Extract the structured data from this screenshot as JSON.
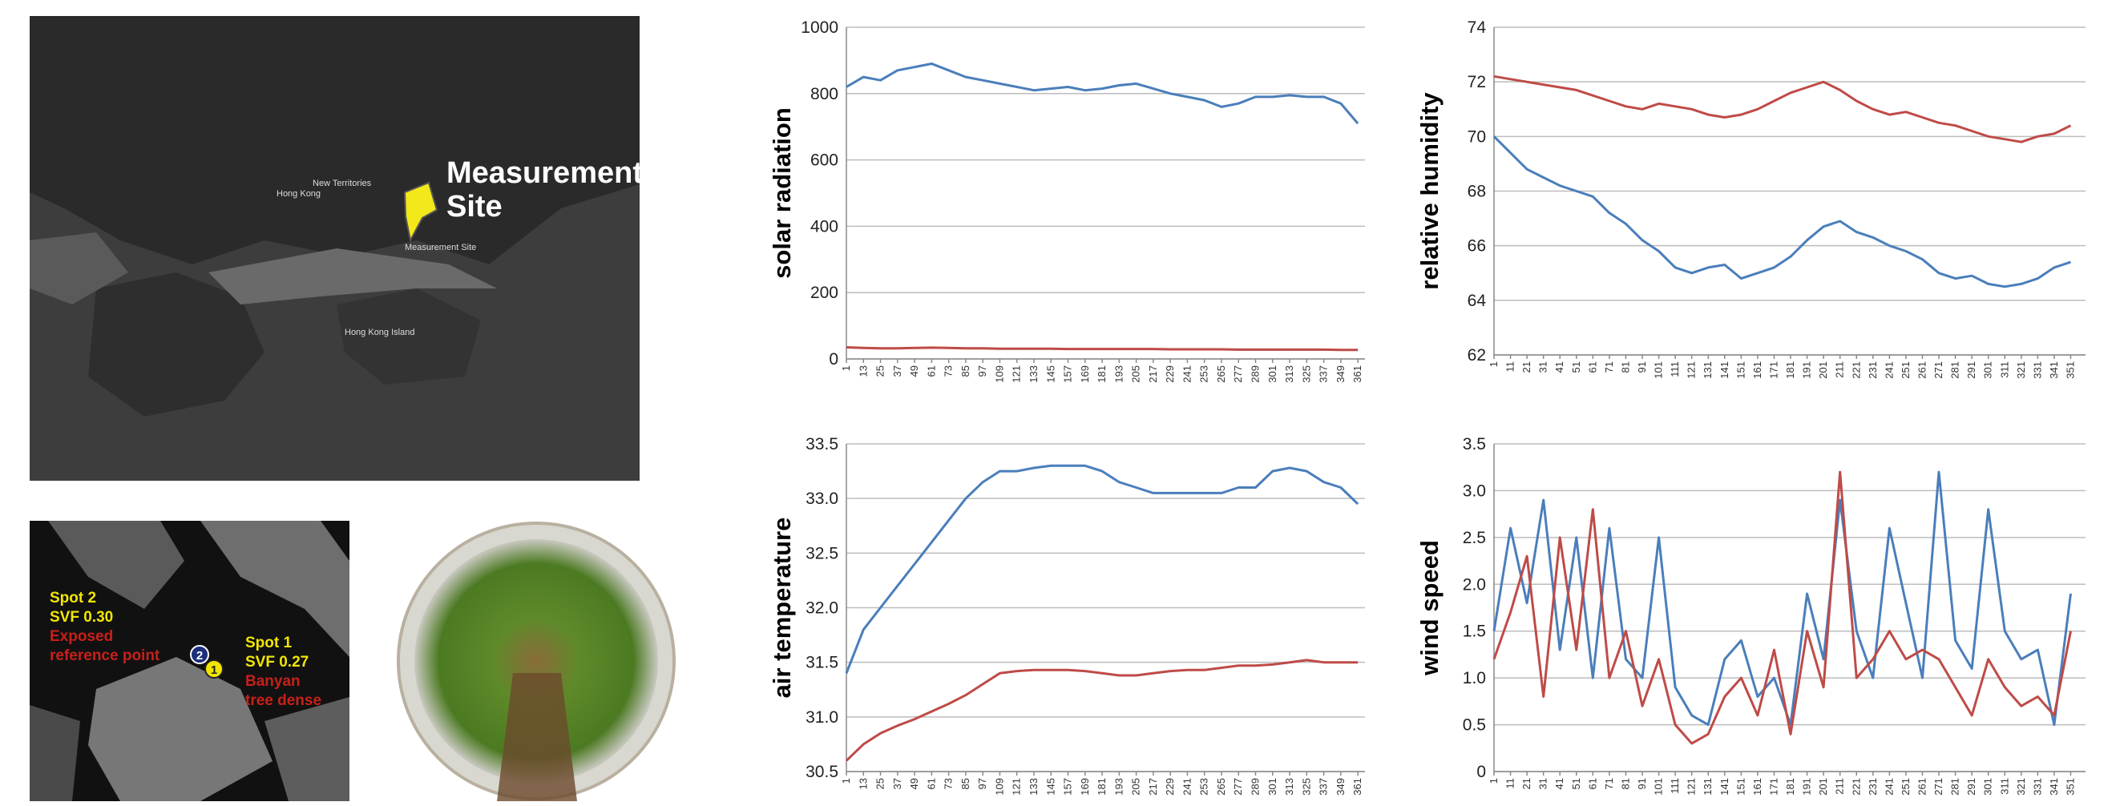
{
  "chart_data": [
    {
      "type": "line",
      "ylabel": "solar radiation",
      "ylim": [
        0,
        1000
      ],
      "yticks": [
        0,
        200,
        400,
        600,
        800,
        1000
      ],
      "grid": true,
      "xlim": [
        1,
        366
      ],
      "xticks": [
        1,
        13,
        25,
        37,
        49,
        61,
        73,
        85,
        97,
        109,
        121,
        133,
        145,
        157,
        169,
        181,
        193,
        205,
        217,
        229,
        241,
        253,
        265,
        277,
        289,
        301,
        313,
        325,
        337,
        349,
        361
      ],
      "x": [
        1,
        13,
        25,
        37,
        49,
        61,
        73,
        85,
        97,
        109,
        121,
        133,
        145,
        157,
        169,
        181,
        193,
        205,
        217,
        229,
        241,
        253,
        265,
        277,
        289,
        301,
        313,
        325,
        337,
        349,
        361
      ],
      "series": [
        {
          "color": "#4a7ebb",
          "values": [
            820,
            850,
            840,
            870,
            880,
            890,
            870,
            850,
            840,
            830,
            820,
            810,
            815,
            820,
            810,
            815,
            825,
            830,
            815,
            800,
            790,
            780,
            760,
            770,
            790,
            790,
            795,
            790,
            790,
            770,
            710
          ]
        },
        {
          "color": "#be4b48",
          "values": [
            35,
            33,
            32,
            32,
            33,
            34,
            33,
            32,
            32,
            31,
            31,
            31,
            31,
            30,
            30,
            30,
            30,
            30,
            30,
            29,
            29,
            29,
            29,
            28,
            28,
            28,
            28,
            28,
            28,
            27,
            27
          ]
        }
      ]
    },
    {
      "type": "line",
      "ylabel": "relative humidity",
      "ylim": [
        62,
        74
      ],
      "yticks": [
        62,
        64,
        66,
        68,
        70,
        72,
        74
      ],
      "grid": true,
      "xlim": [
        1,
        360
      ],
      "xticks": [
        1,
        11,
        21,
        31,
        41,
        51,
        61,
        71,
        81,
        91,
        101,
        111,
        121,
        131,
        141,
        151,
        161,
        171,
        181,
        191,
        201,
        211,
        221,
        231,
        241,
        251,
        261,
        271,
        281,
        291,
        301,
        311,
        321,
        331,
        341,
        351
      ],
      "x": [
        1,
        11,
        21,
        31,
        41,
        51,
        61,
        71,
        81,
        91,
        101,
        111,
        121,
        131,
        141,
        151,
        161,
        171,
        181,
        191,
        201,
        211,
        221,
        231,
        241,
        251,
        261,
        271,
        281,
        291,
        301,
        311,
        321,
        331,
        341,
        351
      ],
      "series": [
        {
          "color": "#be4b48",
          "values": [
            72.2,
            72.1,
            72,
            71.9,
            71.8,
            71.7,
            71.5,
            71.3,
            71.1,
            71,
            71.2,
            71.1,
            71,
            70.8,
            70.7,
            70.8,
            71,
            71.3,
            71.6,
            71.8,
            72,
            71.7,
            71.3,
            71,
            70.8,
            70.9,
            70.7,
            70.5,
            70.4,
            70.2,
            70,
            69.9,
            69.8,
            70,
            70.1,
            70.4
          ]
        },
        {
          "color": "#4a7ebb",
          "values": [
            70,
            69.4,
            68.8,
            68.5,
            68.2,
            68,
            67.8,
            67.2,
            66.8,
            66.2,
            65.8,
            65.2,
            65,
            65.2,
            65.3,
            64.8,
            65,
            65.2,
            65.6,
            66.2,
            66.7,
            66.9,
            66.5,
            66.3,
            66,
            65.8,
            65.5,
            65,
            64.8,
            64.9,
            64.6,
            64.5,
            64.6,
            64.8,
            65.2,
            65.4
          ]
        }
      ]
    },
    {
      "type": "line",
      "ylabel": "air temperature",
      "ylim": [
        30.5,
        33.5
      ],
      "yticks": [
        30.5,
        {
          "value": 31,
          "label": "31.0"
        },
        31.5,
        {
          "value": 32,
          "label": "32.0"
        },
        32.5,
        {
          "value": 33,
          "label": "33.0"
        },
        33.5
      ],
      "grid": true,
      "xlim": [
        1,
        366
      ],
      "xticks": [
        1,
        13,
        25,
        37,
        49,
        61,
        73,
        85,
        97,
        109,
        121,
        133,
        145,
        157,
        169,
        181,
        193,
        205,
        217,
        229,
        241,
        253,
        265,
        277,
        289,
        301,
        313,
        325,
        337,
        349,
        361
      ],
      "x": [
        1,
        13,
        25,
        37,
        49,
        61,
        73,
        85,
        97,
        109,
        121,
        133,
        145,
        157,
        169,
        181,
        193,
        205,
        217,
        229,
        241,
        253,
        265,
        277,
        289,
        301,
        313,
        325,
        337,
        349,
        361
      ],
      "series": [
        {
          "color": "#4a7ebb",
          "values": [
            31.4,
            31.8,
            32,
            32.2,
            32.4,
            32.6,
            32.8,
            33,
            33.15,
            33.25,
            33.25,
            33.28,
            33.3,
            33.3,
            33.3,
            33.25,
            33.15,
            33.1,
            33.05,
            33.05,
            33.05,
            33.05,
            33.05,
            33.1,
            33.1,
            33.25,
            33.28,
            33.25,
            33.15,
            33.1,
            32.95
          ]
        },
        {
          "color": "#be4b48",
          "values": [
            30.6,
            30.75,
            30.85,
            30.92,
            30.98,
            31.05,
            31.12,
            31.2,
            31.3,
            31.4,
            31.42,
            31.43,
            31.43,
            31.43,
            31.42,
            31.4,
            31.38,
            31.38,
            31.4,
            31.42,
            31.43,
            31.43,
            31.45,
            31.47,
            31.47,
            31.48,
            31.5,
            31.52,
            31.5,
            31.5,
            31.5
          ]
        }
      ]
    },
    {
      "type": "line",
      "ylabel": "wind speed",
      "ylim": [
        0,
        3.5
      ],
      "yticks": [
        0,
        0.5,
        {
          "value": 1,
          "label": "1.0"
        },
        1.5,
        {
          "value": 2,
          "label": "2.0"
        },
        2.5,
        {
          "value": 3,
          "label": "3.0"
        },
        3.5
      ],
      "grid": true,
      "xlim": [
        1,
        360
      ],
      "xticks": [
        1,
        11,
        21,
        31,
        41,
        51,
        61,
        71,
        81,
        91,
        101,
        111,
        121,
        131,
        141,
        151,
        161,
        171,
        181,
        191,
        201,
        211,
        221,
        231,
        241,
        251,
        261,
        271,
        281,
        291,
        301,
        311,
        321,
        331,
        341,
        351
      ],
      "x": [
        1,
        11,
        21,
        31,
        41,
        51,
        61,
        71,
        81,
        91,
        101,
        111,
        121,
        131,
        141,
        151,
        161,
        171,
        181,
        191,
        201,
        211,
        221,
        231,
        241,
        251,
        261,
        271,
        281,
        291,
        301,
        311,
        321,
        331,
        341,
        351
      ],
      "series": [
        {
          "color": "#4a7ebb",
          "values": [
            1.5,
            2.6,
            1.8,
            2.9,
            1.3,
            2.5,
            1,
            2.6,
            1.2,
            1,
            2.5,
            0.9,
            0.6,
            0.5,
            1.2,
            1.4,
            0.8,
            1,
            0.5,
            1.9,
            1.2,
            2.9,
            1.5,
            1,
            2.6,
            1.8,
            1,
            3.2,
            1.4,
            1.1,
            2.8,
            1.5,
            1.2,
            1.3,
            0.5,
            1.9
          ]
        },
        {
          "color": "#be4b48",
          "values": [
            1.2,
            1.7,
            2.3,
            0.8,
            2.5,
            1.3,
            2.8,
            1,
            1.5,
            0.7,
            1.2,
            0.5,
            0.3,
            0.4,
            0.8,
            1,
            0.6,
            1.3,
            0.4,
            1.5,
            0.9,
            3.2,
            1,
            1.2,
            1.5,
            1.2,
            1.3,
            1.2,
            0.9,
            0.6,
            1.2,
            0.9,
            0.7,
            0.8,
            0.6,
            1.5
          ]
        }
      ]
    }
  ],
  "map": {
    "site_label": [
      "Measurement",
      "Site"
    ],
    "place_labels": [
      "New Territories",
      "Hong Kong",
      "Measurement Site",
      "Hong Kong Island"
    ]
  },
  "svf": {
    "spot2": {
      "marker": "2",
      "title": [
        "Spot 2",
        "SVF 0.30"
      ],
      "note": [
        "Exposed",
        "reference point"
      ]
    },
    "spot1": {
      "marker": "1",
      "title": [
        "Spot 1",
        "SVF 0.27"
      ],
      "note": [
        "Banyan",
        "tree dense"
      ]
    }
  }
}
